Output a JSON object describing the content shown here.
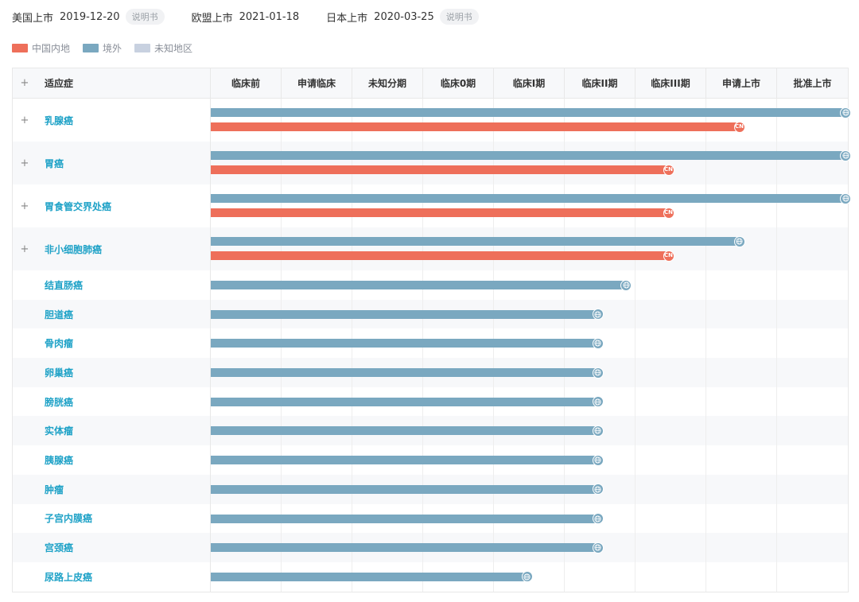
{
  "approvals": [
    {
      "label": "美国上市",
      "date": "2019-12-20",
      "doc": "说明书"
    },
    {
      "label": "欧盟上市",
      "date": "2021-01-18",
      "doc": ""
    },
    {
      "label": "日本上市",
      "date": "2020-03-25",
      "doc": "说明书"
    }
  ],
  "legend": [
    {
      "label": "中国内地",
      "color": "#ee6f5a"
    },
    {
      "label": "境外",
      "color": "#7aa8c0"
    },
    {
      "label": "未知地区",
      "color": "#c8d1e0"
    }
  ],
  "colors": {
    "cn": "#ee6f5a",
    "global": "#7aa8c0",
    "unknown": "#c8d1e0"
  },
  "table": {
    "indication_header": "适应症",
    "expand_symbol": "+",
    "cn_marker": "CN"
  },
  "chart_data": {
    "type": "bar",
    "orientation": "horizontal",
    "phases": [
      "临床前",
      "申请临床",
      "未知分期",
      "临床0期",
      "临床I期",
      "临床II期",
      "临床III期",
      "申请上市",
      "批准上市"
    ],
    "rows": [
      {
        "name": "乳腺癌",
        "expandable": true,
        "global": 9,
        "cn": 7.5
      },
      {
        "name": "胃癌",
        "expandable": true,
        "global": 9,
        "cn": 6.5
      },
      {
        "name": "胃食管交界处癌",
        "expandable": true,
        "global": 9,
        "cn": 6.5
      },
      {
        "name": "非小细胞肺癌",
        "expandable": true,
        "global": 7.5,
        "cn": 6.5
      },
      {
        "name": "结直肠癌",
        "expandable": false,
        "global": 5.9
      },
      {
        "name": "胆道癌",
        "expandable": false,
        "global": 5.5
      },
      {
        "name": "骨肉瘤",
        "expandable": false,
        "global": 5.5
      },
      {
        "name": "卵巢癌",
        "expandable": false,
        "global": 5.5
      },
      {
        "name": "膀胱癌",
        "expandable": false,
        "global": 5.5
      },
      {
        "name": "实体瘤",
        "expandable": false,
        "global": 5.5
      },
      {
        "name": "胰腺癌",
        "expandable": false,
        "global": 5.5
      },
      {
        "name": "肿瘤",
        "expandable": false,
        "global": 5.5
      },
      {
        "name": "子宫内膜癌",
        "expandable": false,
        "global": 5.5
      },
      {
        "name": "宫颈癌",
        "expandable": false,
        "global": 5.5
      },
      {
        "name": "尿路上皮癌",
        "expandable": false,
        "global": 4.5
      }
    ]
  }
}
